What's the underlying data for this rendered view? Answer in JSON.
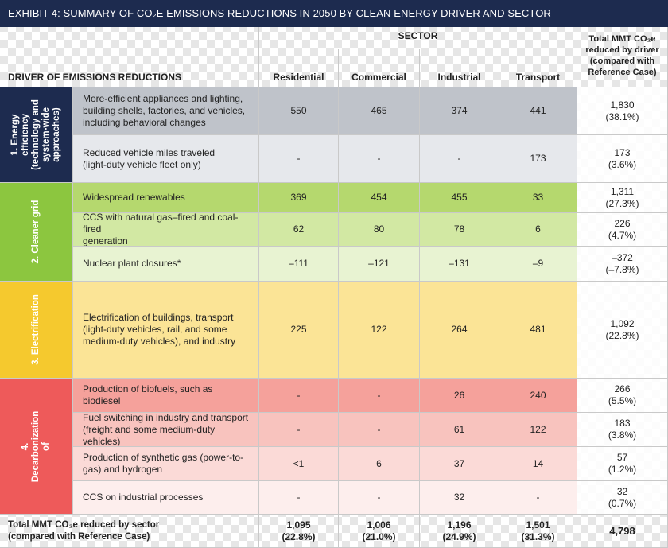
{
  "title": "EXHIBIT 4: SUMMARY  OF CO₂E EMISSIONS  REDUCTIONS  IN 2050 BY CLEAN ENERGY DRIVER AND SECTOR",
  "header": {
    "sector": "SECTOR",
    "driver": "DRIVER OF EMISSIONS REDUCTIONS",
    "columns": [
      "Residential",
      "Commercial",
      "Industrial",
      "Transport"
    ],
    "total_col": "Total MMT  CO₂e\nreduced by driver\n(compared with\nReference Case)"
  },
  "groups": [
    {
      "label": "1. Energy efficiency\n(technology and\nsystem-wide\napproaches)",
      "color": "#1d2b4f",
      "rows": [
        {
          "desc": "More-efficient  appliances and lighting,\nbuilding shells, factories,  and vehicles,\nincluding behavioral changes",
          "values": [
            "550",
            "465",
            "374",
            "441"
          ],
          "total": "1,830\n(38.1%)",
          "bg": "#bfc3ca"
        },
        {
          "desc": "Reduced vehicle miles traveled\n(light-duty vehicle fleet only)",
          "values": [
            "-",
            "-",
            "-",
            "173"
          ],
          "total": "173\n(3.6%)",
          "bg": "#e6e8ec"
        }
      ]
    },
    {
      "label": "2. Cleaner grid",
      "color": "#8cc63f",
      "rows": [
        {
          "desc": "Widespread renewables",
          "values": [
            "369",
            "454",
            "455",
            "33"
          ],
          "total": "1,311\n(27.3%)",
          "bg": "#b5d86e"
        },
        {
          "desc": "CCS with natural gas–fired and coal-fired\ngeneration",
          "values": [
            "62",
            "80",
            "78",
            "6"
          ],
          "total": "226\n(4.7%)",
          "bg": "#d2e8a3"
        },
        {
          "desc": "Nuclear plant closures*",
          "values": [
            "–111",
            "–121",
            "–131",
            "–9"
          ],
          "total": "–372\n(–7.8%)",
          "bg": "#e8f3d2"
        }
      ]
    },
    {
      "label": "3. Electrification",
      "color": "#f5c92e",
      "rows": [
        {
          "desc": "Electrification of buildings, transport\n(light-duty vehicles, rail, and some\nmedium-duty vehicles), and industry",
          "values": [
            "225",
            "122",
            "264",
            "481"
          ],
          "total": "1,092\n(22.8%)",
          "bg": "#fbe496"
        }
      ]
    },
    {
      "label": "4. Decarbonization of",
      "color": "#ee5a5a",
      "rows": [
        {
          "desc": "Production of biofuels, such as biodiesel",
          "values": [
            "-",
            "-",
            "26",
            "240"
          ],
          "total": "266\n(5.5%)",
          "bg": "#f5a19b"
        },
        {
          "desc": "Fuel switching  in industry and transport\n(freight  and some medium-duty  vehicles)",
          "values": [
            "-",
            "-",
            "61",
            "122"
          ],
          "total": "183\n(3.8%)",
          "bg": "#f8c3be"
        },
        {
          "desc": "Production of synthetic gas (power-to-\ngas) and hydrogen",
          "values": [
            "<1",
            "6",
            "37",
            "14"
          ],
          "total": "57\n(1.2%)",
          "bg": "#fbdad7"
        },
        {
          "desc": "CCS on industrial processes",
          "values": [
            "-",
            "-",
            "32",
            "-"
          ],
          "total": "32\n(0.7%)",
          "bg": "#fdeeed"
        }
      ]
    }
  ],
  "totals": {
    "label": "Total MMT  CO₂e reduced by sector\n(compared with Reference Case)",
    "values": [
      "1,095\n(22.8%)",
      "1,006\n(21.0%)",
      "1,196\n(24.9%)",
      "1,501\n(31.3%)"
    ],
    "grand": "4,798"
  }
}
